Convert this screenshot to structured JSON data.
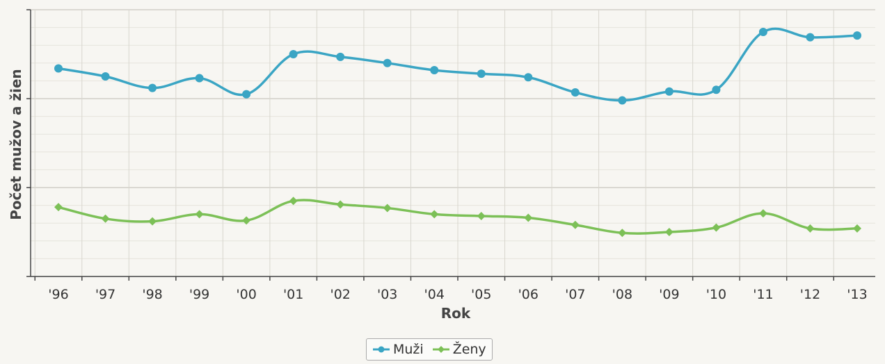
{
  "chart_data": {
    "type": "line",
    "x": [
      "'96",
      "'97",
      "'98",
      "'99",
      "'00",
      "'01",
      "'02",
      "'03",
      "'04",
      "'05",
      "'06",
      "'07",
      "'08",
      "'09",
      "'10",
      "'11",
      "'12",
      "'13"
    ],
    "xlabel": "Rok",
    "ylabel": "Počet mužov a žien",
    "ylim": [
      0,
      3
    ],
    "y_tick_labels_shown": false,
    "grid": true,
    "legend_position": "bottom-center",
    "series": [
      {
        "name": "Muži",
        "color": "#3aa5c4",
        "values": [
          2.34,
          2.25,
          2.12,
          2.23,
          2.05,
          2.5,
          2.47,
          2.4,
          2.32,
          2.28,
          2.24,
          2.07,
          1.98,
          2.08,
          2.1,
          2.75,
          2.69,
          2.71
        ]
      },
      {
        "name": "Ženy",
        "color": "#7cc057",
        "values": [
          0.78,
          0.65,
          0.62,
          0.7,
          0.63,
          0.85,
          0.81,
          0.77,
          0.7,
          0.68,
          0.66,
          0.58,
          0.49,
          0.5,
          0.55,
          0.71,
          0.54,
          0.54
        ]
      }
    ]
  }
}
